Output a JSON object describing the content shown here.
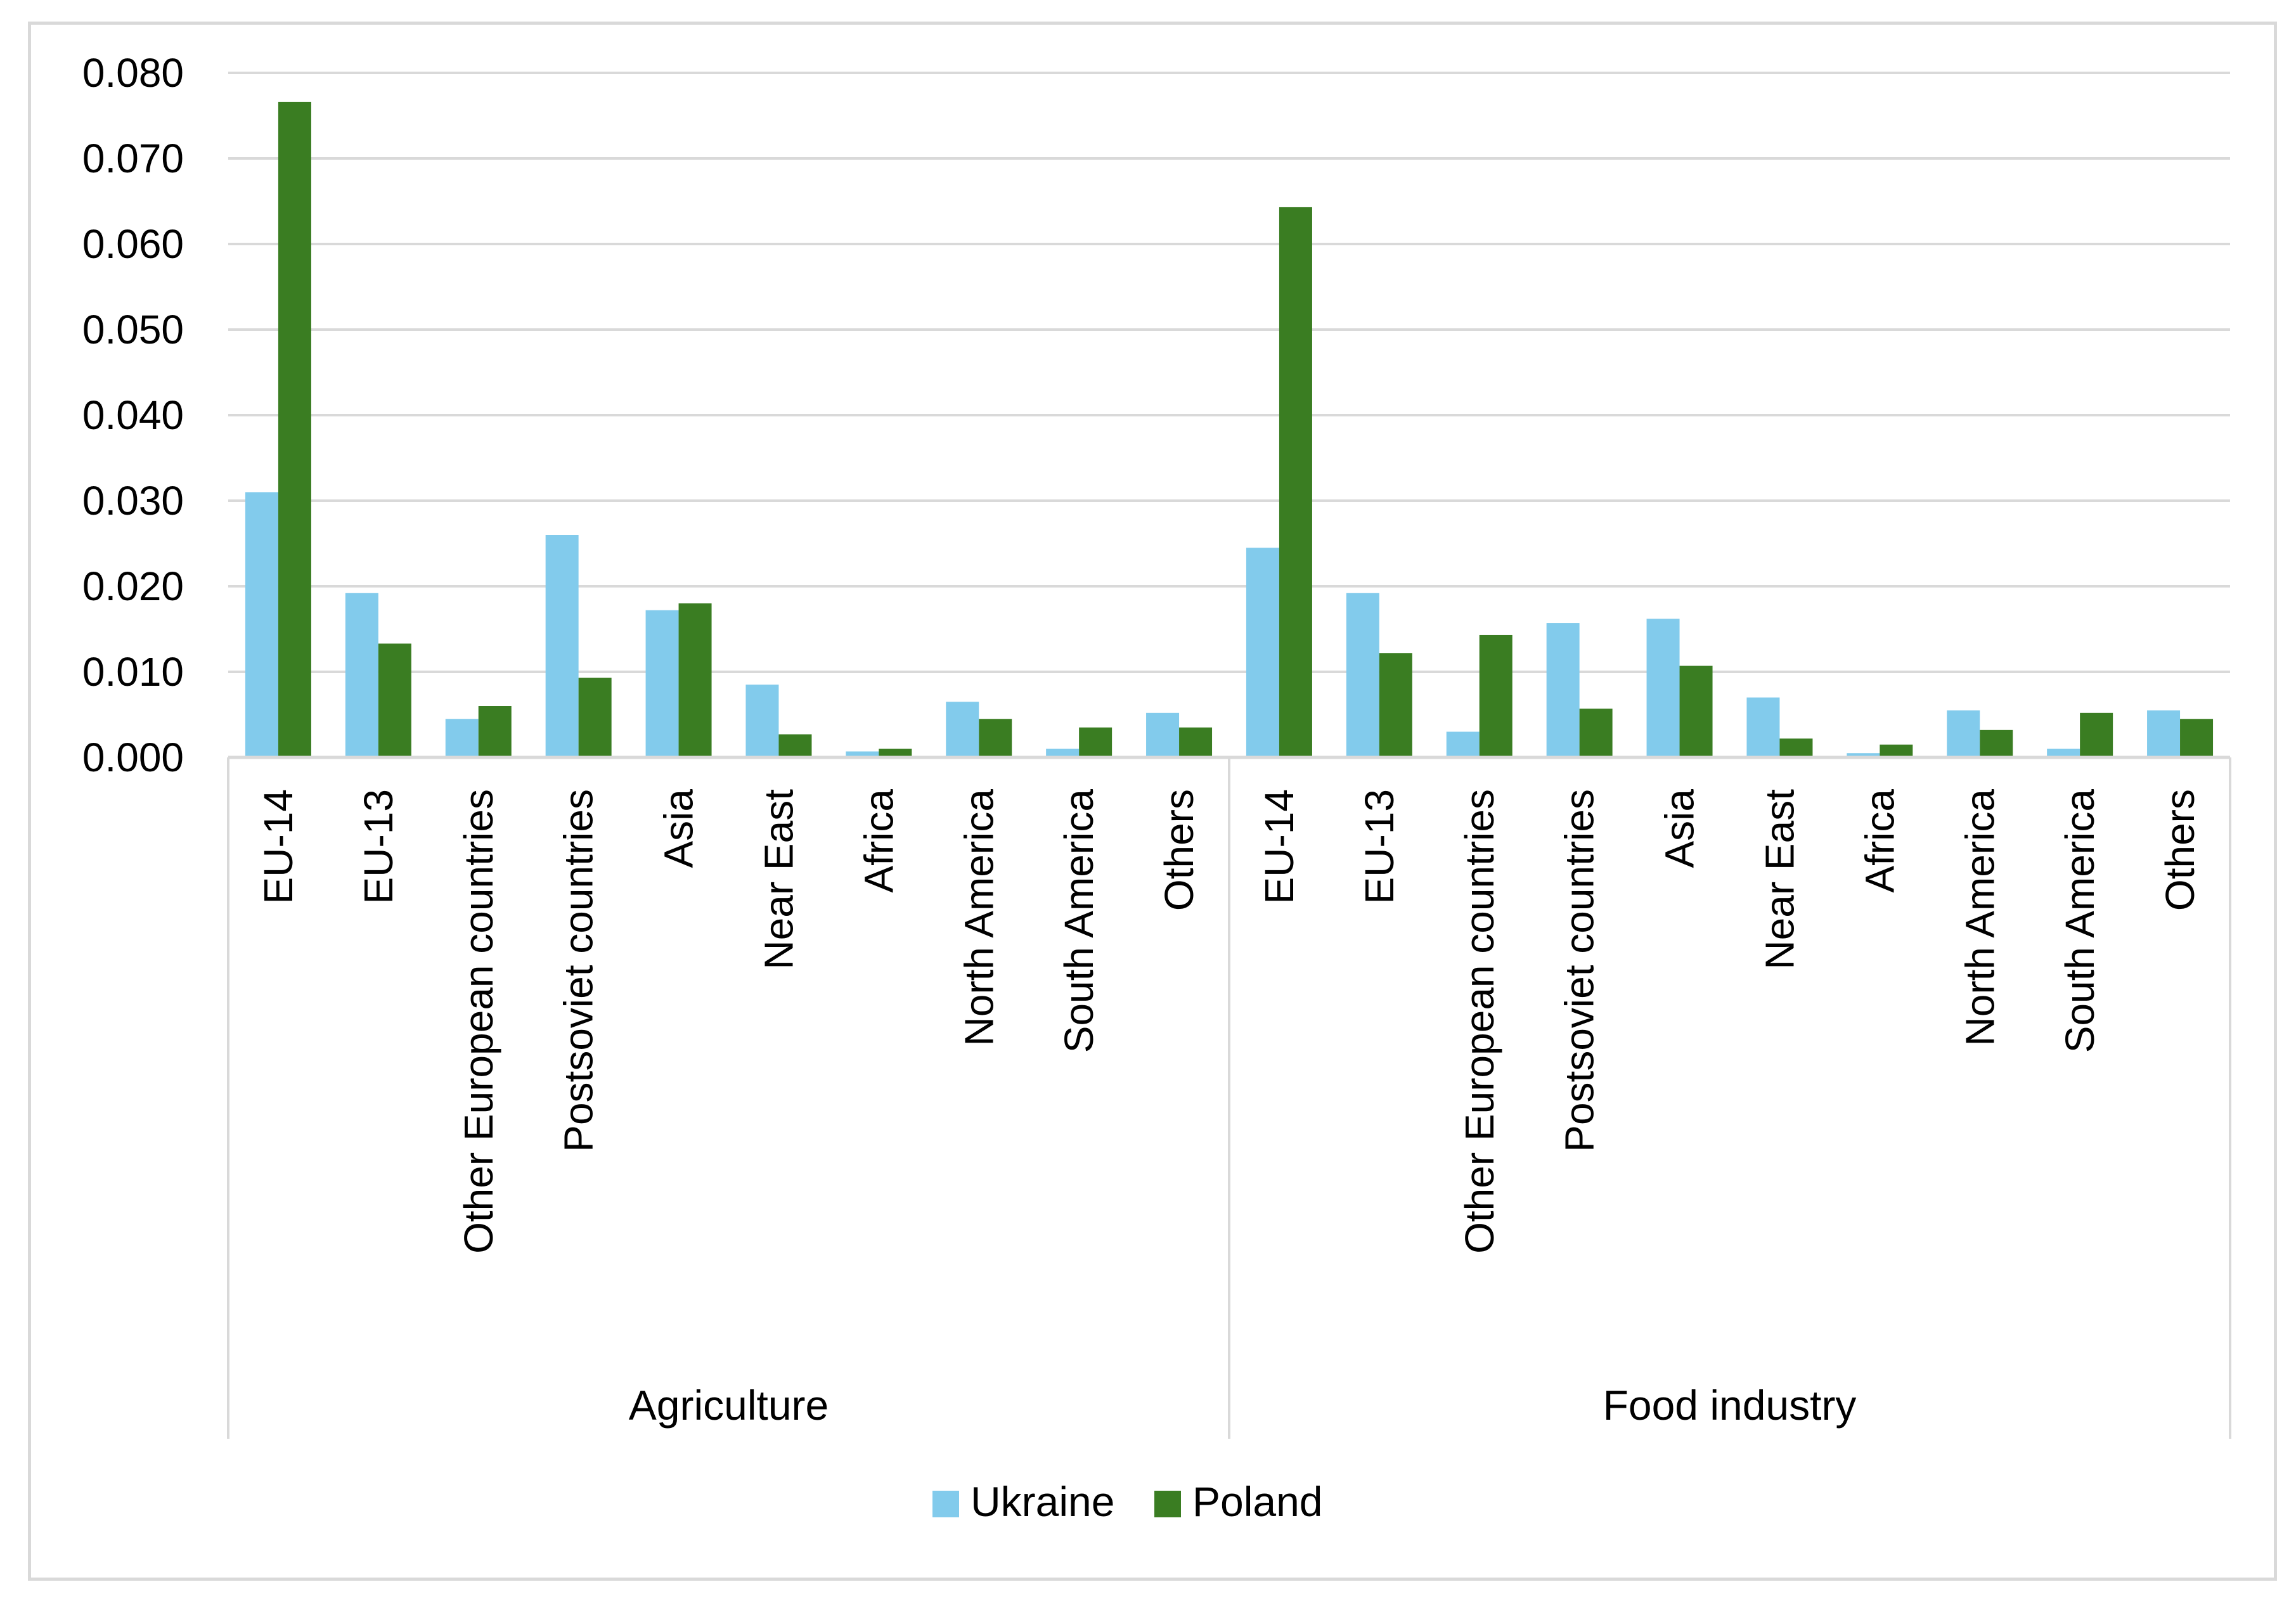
{
  "chart_data": {
    "type": "bar",
    "title": "",
    "xlabel": "",
    "ylabel": "",
    "ylim": [
      0,
      0.08
    ],
    "yticks": [
      "0.000",
      "0.010",
      "0.020",
      "0.030",
      "0.040",
      "0.050",
      "0.060",
      "0.070",
      "0.080"
    ],
    "grid": true,
    "legend_position": "bottom",
    "groups": [
      {
        "name": "Agriculture",
        "categories": [
          "EU-14",
          "EU-13",
          "Other European countries",
          "Postsoviet countries",
          "Asia",
          "Near East",
          "Africa",
          "North America",
          "South America",
          "Others"
        ],
        "series": [
          {
            "name": "Ukraine",
            "values": [
              0.031,
              0.0192,
              0.0045,
              0.026,
              0.0172,
              0.0085,
              0.0007,
              0.0065,
              0.001,
              0.0052
            ]
          },
          {
            "name": "Poland",
            "values": [
              0.0766,
              0.0133,
              0.006,
              0.0093,
              0.018,
              0.0027,
              0.001,
              0.0045,
              0.0035,
              0.0035
            ]
          }
        ]
      },
      {
        "name": "Food industry",
        "categories": [
          "EU-14",
          "EU-13",
          "Other European countries",
          "Postsoviet countries",
          "Asia",
          "Near East",
          "Africa",
          "North America",
          "South America",
          "Others"
        ],
        "series": [
          {
            "name": "Ukraine",
            "values": [
              0.0245,
              0.0192,
              0.003,
              0.0157,
              0.0162,
              0.007,
              0.0005,
              0.0055,
              0.001,
              0.0055
            ]
          },
          {
            "name": "Poland",
            "values": [
              0.0643,
              0.0122,
              0.0143,
              0.0057,
              0.0107,
              0.0022,
              0.0015,
              0.0032,
              0.0052,
              0.0045
            ]
          }
        ]
      }
    ],
    "legend": [
      {
        "name": "Ukraine",
        "color": "#82cbec"
      },
      {
        "name": "Poland",
        "color": "#3a7d22"
      }
    ]
  }
}
